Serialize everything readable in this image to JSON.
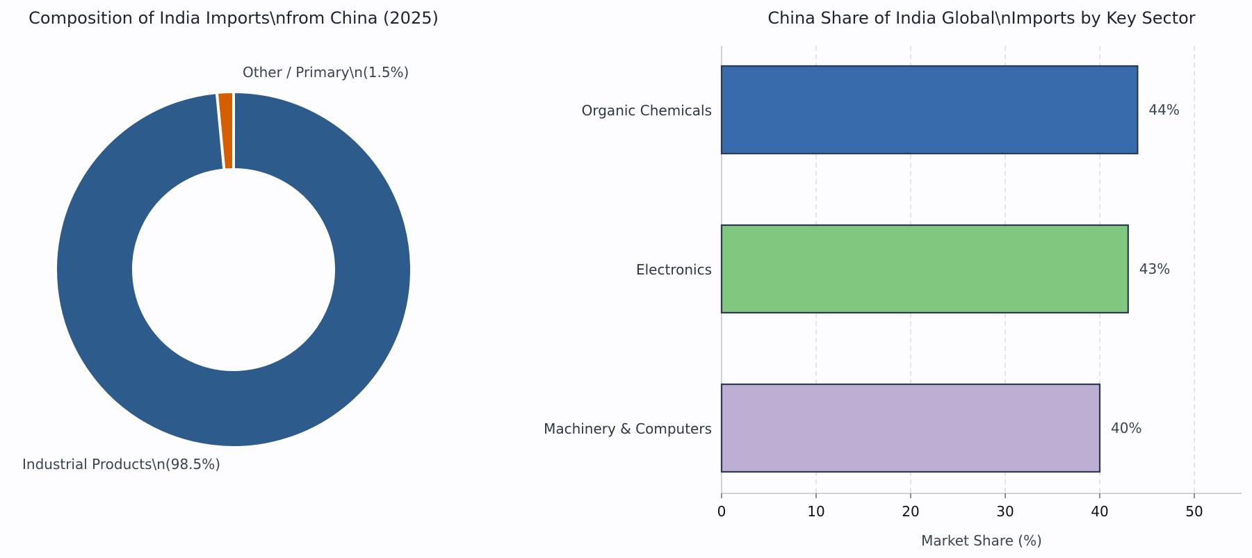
{
  "chart_data": [
    {
      "type": "pie",
      "variant": "donut",
      "title": "Composition of India Imports\\nfrom China (2025)",
      "slices": [
        {
          "label": "Industrial Products\\n(98.5%)",
          "value": 98.5,
          "color": "#2c5b8c"
        },
        {
          "label": "Other / Primary\\n(1.5%)",
          "value": 1.5,
          "color": "#d55e00"
        }
      ],
      "legend": "none"
    },
    {
      "type": "bar",
      "orientation": "horizontal",
      "title": "China Share of India Global\\nImports by Key Sector",
      "categories": [
        "Organic Chemicals",
        "Electronics",
        "Machinery & Computers"
      ],
      "values": [
        44,
        43,
        40
      ],
      "value_labels": [
        "44%",
        "43%",
        "40%"
      ],
      "colors": [
        "#376bac",
        "#82c77f",
        "#bdaed4"
      ],
      "bar_edge_color": "#2b3a50",
      "xlabel": "Market Share (%)",
      "ylabel": "",
      "xlim": [
        0,
        55
      ],
      "xticks": [
        0,
        10,
        20,
        30,
        40,
        50
      ],
      "grid": "vertical dashed",
      "legend": "none"
    }
  ]
}
